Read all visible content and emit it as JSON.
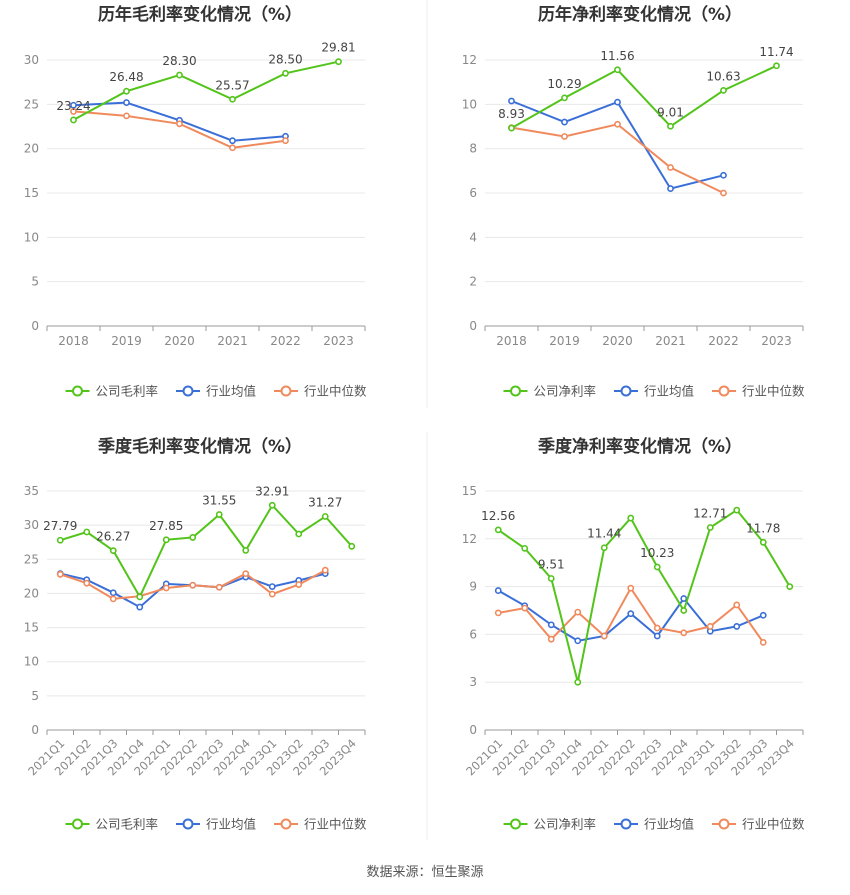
{
  "colors": {
    "company": "#52c41a",
    "industry_avg": "#3a6fd8",
    "industry_median": "#f08a5d",
    "axis_text": "#888888",
    "title_text": "#333333",
    "grid": "#e8e8e8"
  },
  "legend_labels": {
    "company_gross": "公司毛利率",
    "company_net": "公司净利率",
    "industry_avg": "行业均值",
    "industry_median": "行业中位数"
  },
  "source_text": "数据来源：恒生聚源",
  "chart_data": [
    {
      "type": "line",
      "title": "历年毛利率变化情况（%）",
      "categories": [
        "2018",
        "2019",
        "2020",
        "2021",
        "2022",
        "2023"
      ],
      "ylim": [
        0,
        30
      ],
      "yticks": [
        0,
        5,
        10,
        15,
        20,
        25,
        30
      ],
      "grid": true,
      "legend_position": "bottom",
      "series": [
        {
          "name": "公司毛利率",
          "key": "company",
          "values": [
            23.24,
            26.48,
            28.3,
            25.57,
            28.5,
            29.81
          ],
          "labels": [
            "23.24",
            "26.48",
            "28.30",
            "25.57",
            "28.50",
            "29.81"
          ]
        },
        {
          "name": "行业均值",
          "key": "industry_avg",
          "values": [
            24.9,
            25.2,
            23.2,
            20.9,
            21.4,
            null
          ]
        },
        {
          "name": "行业中位数",
          "key": "industry_median",
          "values": [
            24.2,
            23.7,
            22.8,
            20.1,
            20.9,
            null
          ]
        }
      ]
    },
    {
      "type": "line",
      "title": "历年净利率变化情况（%）",
      "categories": [
        "2018",
        "2019",
        "2020",
        "2021",
        "2022",
        "2023"
      ],
      "ylim": [
        0,
        12
      ],
      "yticks": [
        0,
        2,
        4,
        6,
        8,
        10,
        12
      ],
      "grid": true,
      "legend_position": "bottom",
      "series": [
        {
          "name": "公司净利率",
          "key": "company",
          "values": [
            8.93,
            10.29,
            11.56,
            9.01,
            10.63,
            11.74
          ],
          "labels": [
            "8.93",
            "10.29",
            "11.56",
            "9.01",
            "10.63",
            "11.74"
          ]
        },
        {
          "name": "行业均值",
          "key": "industry_avg",
          "values": [
            10.15,
            9.2,
            10.1,
            6.2,
            6.8,
            null
          ]
        },
        {
          "name": "行业中位数",
          "key": "industry_median",
          "values": [
            8.95,
            8.55,
            9.1,
            7.15,
            6.0,
            null
          ]
        }
      ]
    },
    {
      "type": "line",
      "title": "季度毛利率变化情况（%）",
      "categories": [
        "2021Q1",
        "2021Q2",
        "2021Q3",
        "2021Q4",
        "2022Q1",
        "2022Q2",
        "2022Q3",
        "2022Q4",
        "2023Q1",
        "2023Q2",
        "2023Q3",
        "2023Q4"
      ],
      "ylim": [
        0,
        35
      ],
      "yticks": [
        0,
        5,
        10,
        15,
        20,
        25,
        30,
        35
      ],
      "grid": true,
      "legend_position": "bottom",
      "series": [
        {
          "name": "公司毛利率",
          "key": "company",
          "values": [
            27.79,
            29.0,
            26.27,
            19.5,
            27.85,
            28.2,
            31.55,
            26.3,
            32.91,
            28.7,
            31.27,
            26.9
          ],
          "labels": [
            "27.79",
            null,
            "26.27",
            null,
            "27.85",
            null,
            "31.55",
            null,
            "32.91",
            null,
            "31.27",
            null
          ]
        },
        {
          "name": "行业均值",
          "key": "industry_avg",
          "values": [
            22.9,
            22.0,
            20.1,
            18.0,
            21.4,
            21.2,
            20.9,
            22.4,
            21.0,
            21.9,
            22.9,
            null
          ]
        },
        {
          "name": "行业中位数",
          "key": "industry_median",
          "values": [
            22.8,
            21.5,
            19.2,
            19.6,
            20.8,
            21.2,
            20.9,
            22.9,
            19.9,
            21.3,
            23.4,
            null
          ]
        }
      ]
    },
    {
      "type": "line",
      "title": "季度净利率变化情况（%）",
      "categories": [
        "2021Q1",
        "2021Q2",
        "2021Q3",
        "2021Q4",
        "2022Q1",
        "2022Q2",
        "2022Q3",
        "2022Q4",
        "2023Q1",
        "2023Q2",
        "2023Q3",
        "2023Q4"
      ],
      "ylim": [
        0,
        15
      ],
      "yticks": [
        0,
        3,
        6,
        9,
        12,
        15
      ],
      "grid": true,
      "legend_position": "bottom",
      "series": [
        {
          "name": "公司净利率",
          "key": "company",
          "values": [
            12.56,
            11.4,
            9.51,
            3.0,
            11.44,
            13.3,
            10.23,
            7.5,
            12.71,
            13.8,
            11.78,
            9.0
          ],
          "labels": [
            "12.56",
            null,
            "9.51",
            null,
            "11.44",
            null,
            "10.23",
            null,
            "12.71",
            null,
            "11.78",
            null
          ]
        },
        {
          "name": "行业均值",
          "key": "industry_avg",
          "values": [
            8.75,
            7.8,
            6.6,
            5.6,
            5.9,
            7.3,
            5.9,
            8.25,
            6.2,
            6.5,
            7.2,
            null
          ]
        },
        {
          "name": "行业中位数",
          "key": "industry_median",
          "values": [
            7.35,
            7.65,
            5.7,
            7.4,
            5.9,
            8.9,
            6.4,
            6.1,
            6.5,
            7.85,
            5.5,
            null
          ]
        }
      ]
    }
  ]
}
